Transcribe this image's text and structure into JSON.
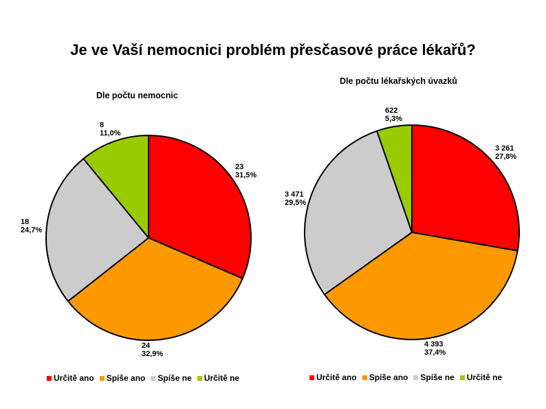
{
  "title": "Je ve Vaší nemocnici problém přesčasové práce lékařů?",
  "colors": {
    "urcite_ano": "#ff0000",
    "spise_ano": "#ff9900",
    "spise_ne": "#cccccc",
    "urcite_ne": "#99cc00"
  },
  "chart_data": [
    {
      "type": "pie",
      "title": "Dle počtu nemocnic",
      "slices": [
        {
          "name": "Určitě ano",
          "value": 23,
          "value_label": "23",
          "percent_label": "31,5%"
        },
        {
          "name": "Spíše ano",
          "value": 24,
          "value_label": "24",
          "percent_label": "32,9%"
        },
        {
          "name": "Spíše ne",
          "value": 18,
          "value_label": "18",
          "percent_label": "24,7%"
        },
        {
          "name": "Určitě ne",
          "value": 8,
          "value_label": "8",
          "percent_label": "11,0%"
        }
      ],
      "legend": [
        "Určitě ano",
        "Spíše ano",
        "Spíše ne",
        "Určitě ne"
      ],
      "legend_position": "bottom"
    },
    {
      "type": "pie",
      "title": "Dle počtu lékařských úvazků",
      "slices": [
        {
          "name": "Určitě ano",
          "value": 3261,
          "value_label": "3 261",
          "percent_label": "27,8%"
        },
        {
          "name": "Spíše ano",
          "value": 4393,
          "value_label": "4 393",
          "percent_label": "37,4%"
        },
        {
          "name": "Spíše ne",
          "value": 3471,
          "value_label": "3 471",
          "percent_label": "29,5%"
        },
        {
          "name": "Určitě ne",
          "value": 622,
          "value_label": "622",
          "percent_label": "5,3%"
        }
      ],
      "legend": [
        "Určitě ano",
        "Spíše ano",
        "Spíše ne",
        "Určitě ne"
      ],
      "legend_position": "bottom"
    }
  ]
}
